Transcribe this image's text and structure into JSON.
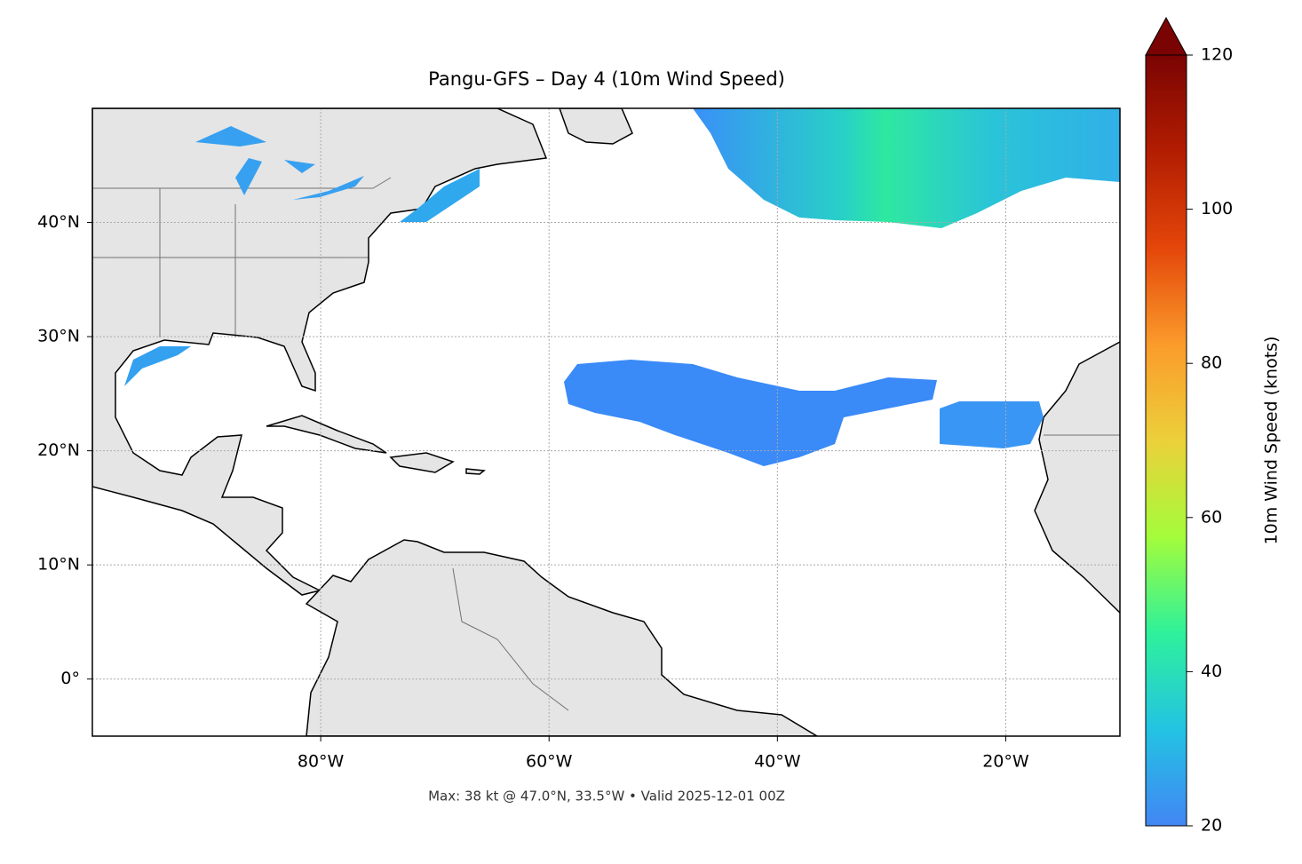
{
  "chart_data": {
    "type": "map",
    "title": "Pangu-GFS – Day 4 (10m Wind Speed)",
    "footnote": "Max: 38 kt @ 47.0°N, 33.5°W • Valid 2025-12-01 00Z",
    "xlim": [
      -100,
      -10
    ],
    "ylim": [
      -5,
      50
    ],
    "xticks": [
      {
        "value": -80,
        "label": "80°W"
      },
      {
        "value": -60,
        "label": "60°W"
      },
      {
        "value": -40,
        "label": "40°W"
      },
      {
        "value": -20,
        "label": "20°W"
      }
    ],
    "yticks": [
      {
        "value": 0,
        "label": "0°"
      },
      {
        "value": 10,
        "label": "10°N"
      },
      {
        "value": 20,
        "label": "20°N"
      },
      {
        "value": 30,
        "label": "30°N"
      },
      {
        "value": 40,
        "label": "40°N"
      }
    ],
    "grid": true,
    "colorbar": {
      "label": "10m Wind Speed (knots)",
      "lim": [
        20,
        120
      ],
      "ticks": [
        20,
        40,
        60,
        80,
        100,
        120
      ],
      "colors": [
        "#4286f4",
        "#23c3e3",
        "#2ef19b",
        "#a4fc3b",
        "#ecd03a",
        "#fb9b2b",
        "#e4460a",
        "#b21d02",
        "#7a0403"
      ]
    }
  }
}
